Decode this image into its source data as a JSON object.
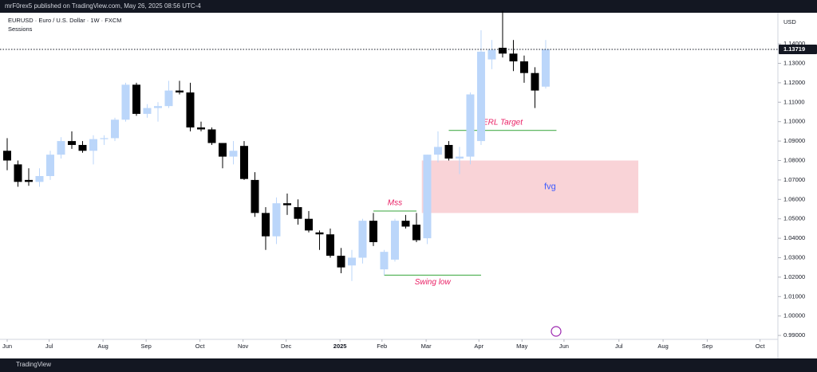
{
  "chart_data": {
    "type": "candlestick",
    "header": "mrF0rex5 published on TradingView.com, May 26, 2025 08:56 UTC-4",
    "title": "EURUSD · Euro / U.S. Dollar · 1W · FXCM",
    "indicator": "Sessions",
    "currency": "USD",
    "footer": "TradingView",
    "up_color": "#bbd6fa",
    "down_color": "#000000",
    "x": [
      0,
      1,
      2,
      3,
      4,
      5,
      6,
      7,
      8,
      9,
      10,
      11,
      12,
      13,
      14,
      15,
      16,
      17,
      18,
      19,
      20,
      21,
      22,
      23,
      24,
      25,
      26,
      27,
      28,
      29,
      30,
      31,
      32,
      33,
      34,
      35,
      36,
      37,
      38,
      39,
      40,
      41,
      42,
      43,
      44,
      45,
      46,
      47,
      48,
      49,
      50
    ],
    "ohlc": [
      [
        1.085,
        1.0915,
        1.075,
        1.08
      ],
      [
        1.078,
        1.08,
        1.0665,
        1.069
      ],
      [
        1.07,
        1.076,
        1.067,
        1.069
      ],
      [
        1.069,
        1.076,
        1.0665,
        1.072
      ],
      [
        1.072,
        1.085,
        1.07,
        1.083
      ],
      [
        1.083,
        1.092,
        1.081,
        1.09
      ],
      [
        1.09,
        1.095,
        1.086,
        1.088
      ],
      [
        1.088,
        1.09,
        1.084,
        1.085
      ],
      [
        1.085,
        1.093,
        1.078,
        1.091
      ],
      [
        1.091,
        1.093,
        1.088,
        1.0915
      ],
      [
        1.0915,
        1.102,
        1.09,
        1.101
      ],
      [
        1.101,
        1.12,
        1.1,
        1.119
      ],
      [
        1.119,
        1.12,
        1.103,
        1.104
      ],
      [
        1.104,
        1.109,
        1.102,
        1.107
      ],
      [
        1.107,
        1.11,
        1.1,
        1.108
      ],
      [
        1.108,
        1.121,
        1.107,
        1.116
      ],
      [
        1.116,
        1.121,
        1.114,
        1.115
      ],
      [
        1.115,
        1.12,
        1.095,
        1.097
      ],
      [
        1.097,
        1.1,
        1.095,
        1.096
      ],
      [
        1.096,
        1.097,
        1.088,
        1.089
      ],
      [
        1.089,
        1.089,
        1.076,
        1.082
      ],
      [
        1.082,
        1.09,
        1.078,
        1.085
      ],
      [
        1.0875,
        1.09,
        1.07,
        1.0705
      ],
      [
        1.07,
        1.074,
        1.051,
        1.053
      ],
      [
        1.053,
        1.056,
        1.034,
        1.041
      ],
      [
        1.041,
        1.061,
        1.037,
        1.058
      ],
      [
        1.058,
        1.063,
        1.052,
        1.057
      ],
      [
        1.056,
        1.06,
        1.047,
        1.05
      ],
      [
        1.05,
        1.054,
        1.043,
        1.044
      ],
      [
        1.043,
        1.044,
        1.034,
        1.042
      ],
      [
        1.042,
        1.045,
        1.03,
        1.031
      ],
      [
        1.031,
        1.035,
        1.022,
        1.025
      ],
      [
        1.026,
        1.034,
        1.018,
        1.03
      ],
      [
        1.03,
        1.05,
        1.027,
        1.049
      ],
      [
        1.049,
        1.053,
        1.036,
        1.038
      ],
      [
        1.024,
        1.034,
        1.021,
        1.033
      ],
      [
        1.029,
        1.05,
        1.028,
        1.049
      ],
      [
        1.049,
        1.052,
        1.045,
        1.046
      ],
      [
        1.047,
        1.053,
        1.038,
        1.039
      ],
      [
        1.04,
        1.083,
        1.037,
        1.083
      ],
      [
        1.083,
        1.095,
        1.079,
        1.087
      ],
      [
        1.088,
        1.09,
        1.08,
        1.081
      ],
      [
        1.081,
        1.087,
        1.073,
        1.082
      ],
      [
        1.082,
        1.115,
        1.078,
        1.114
      ],
      [
        1.09,
        1.147,
        1.088,
        1.136
      ],
      [
        1.132,
        1.142,
        1.127,
        1.137
      ],
      [
        1.138,
        1.157,
        1.133,
        1.135
      ],
      [
        1.135,
        1.142,
        1.126,
        1.131
      ],
      [
        1.131,
        1.134,
        1.12,
        1.125
      ],
      [
        1.125,
        1.128,
        1.107,
        1.116
      ],
      [
        1.118,
        1.142,
        1.117,
        1.1372
      ]
    ],
    "last_price": 1.13719,
    "xlim": [
      -0.667,
      71.56
    ],
    "ylim": [
      0.9884,
      1.1552
    ],
    "xticks": [
      {
        "value": 0,
        "label": "Jun"
      },
      {
        "value": 3.9,
        "label": "Jul"
      },
      {
        "value": 8.9,
        "label": "Aug"
      },
      {
        "value": 12.9,
        "label": "Sep"
      },
      {
        "value": 17.9,
        "label": "Oct"
      },
      {
        "value": 21.9,
        "label": "Nov"
      },
      {
        "value": 25.9,
        "label": "Dec"
      },
      {
        "value": 30.9,
        "label": "2025"
      },
      {
        "value": 34.8,
        "label": "Feb"
      },
      {
        "value": 38.9,
        "label": "Mar"
      },
      {
        "value": 43.8,
        "label": "Apr"
      },
      {
        "value": 47.8,
        "label": "May"
      },
      {
        "value": 51.7,
        "label": "Jun"
      },
      {
        "value": 56.8,
        "label": "Jul"
      },
      {
        "value": 60.9,
        "label": "Aug"
      },
      {
        "value": 65,
        "label": "Sep"
      },
      {
        "value": 69.9,
        "label": "Oct"
      }
    ],
    "yticks": [
      {
        "value": 0.99,
        "label": "0.99000"
      },
      {
        "value": 1.0,
        "label": "1.00000"
      },
      {
        "value": 1.01,
        "label": "1.01000"
      },
      {
        "value": 1.02,
        "label": "1.02000"
      },
      {
        "value": 1.03,
        "label": "1.03000"
      },
      {
        "value": 1.04,
        "label": "1.04000"
      },
      {
        "value": 1.05,
        "label": "1.05000"
      },
      {
        "value": 1.06,
        "label": "1.06000"
      },
      {
        "value": 1.07,
        "label": "1.07000"
      },
      {
        "value": 1.08,
        "label": "1.08000"
      },
      {
        "value": 1.09,
        "label": "1.09000"
      },
      {
        "value": 1.1,
        "label": "1.10000"
      },
      {
        "value": 1.11,
        "label": "1.11000"
      },
      {
        "value": 1.12,
        "label": "1.12000"
      },
      {
        "value": 1.13,
        "label": "1.13000"
      },
      {
        "value": 1.14,
        "label": "1.14000"
      }
    ],
    "zone": {
      "text": "fvg",
      "top": 1.08,
      "bottom": 1.053,
      "x": [
        38.5,
        58.6
      ],
      "color": "#f9d3d7"
    },
    "levels": [
      {
        "text": "ERL Target",
        "price": 1.0955,
        "x": [
          41,
          51
        ]
      },
      {
        "text": "Mss",
        "price": 1.054,
        "x": [
          34,
          38
        ]
      },
      {
        "text": "Swing low",
        "price": 1.021,
        "x": [
          35,
          44
        ]
      }
    ]
  }
}
